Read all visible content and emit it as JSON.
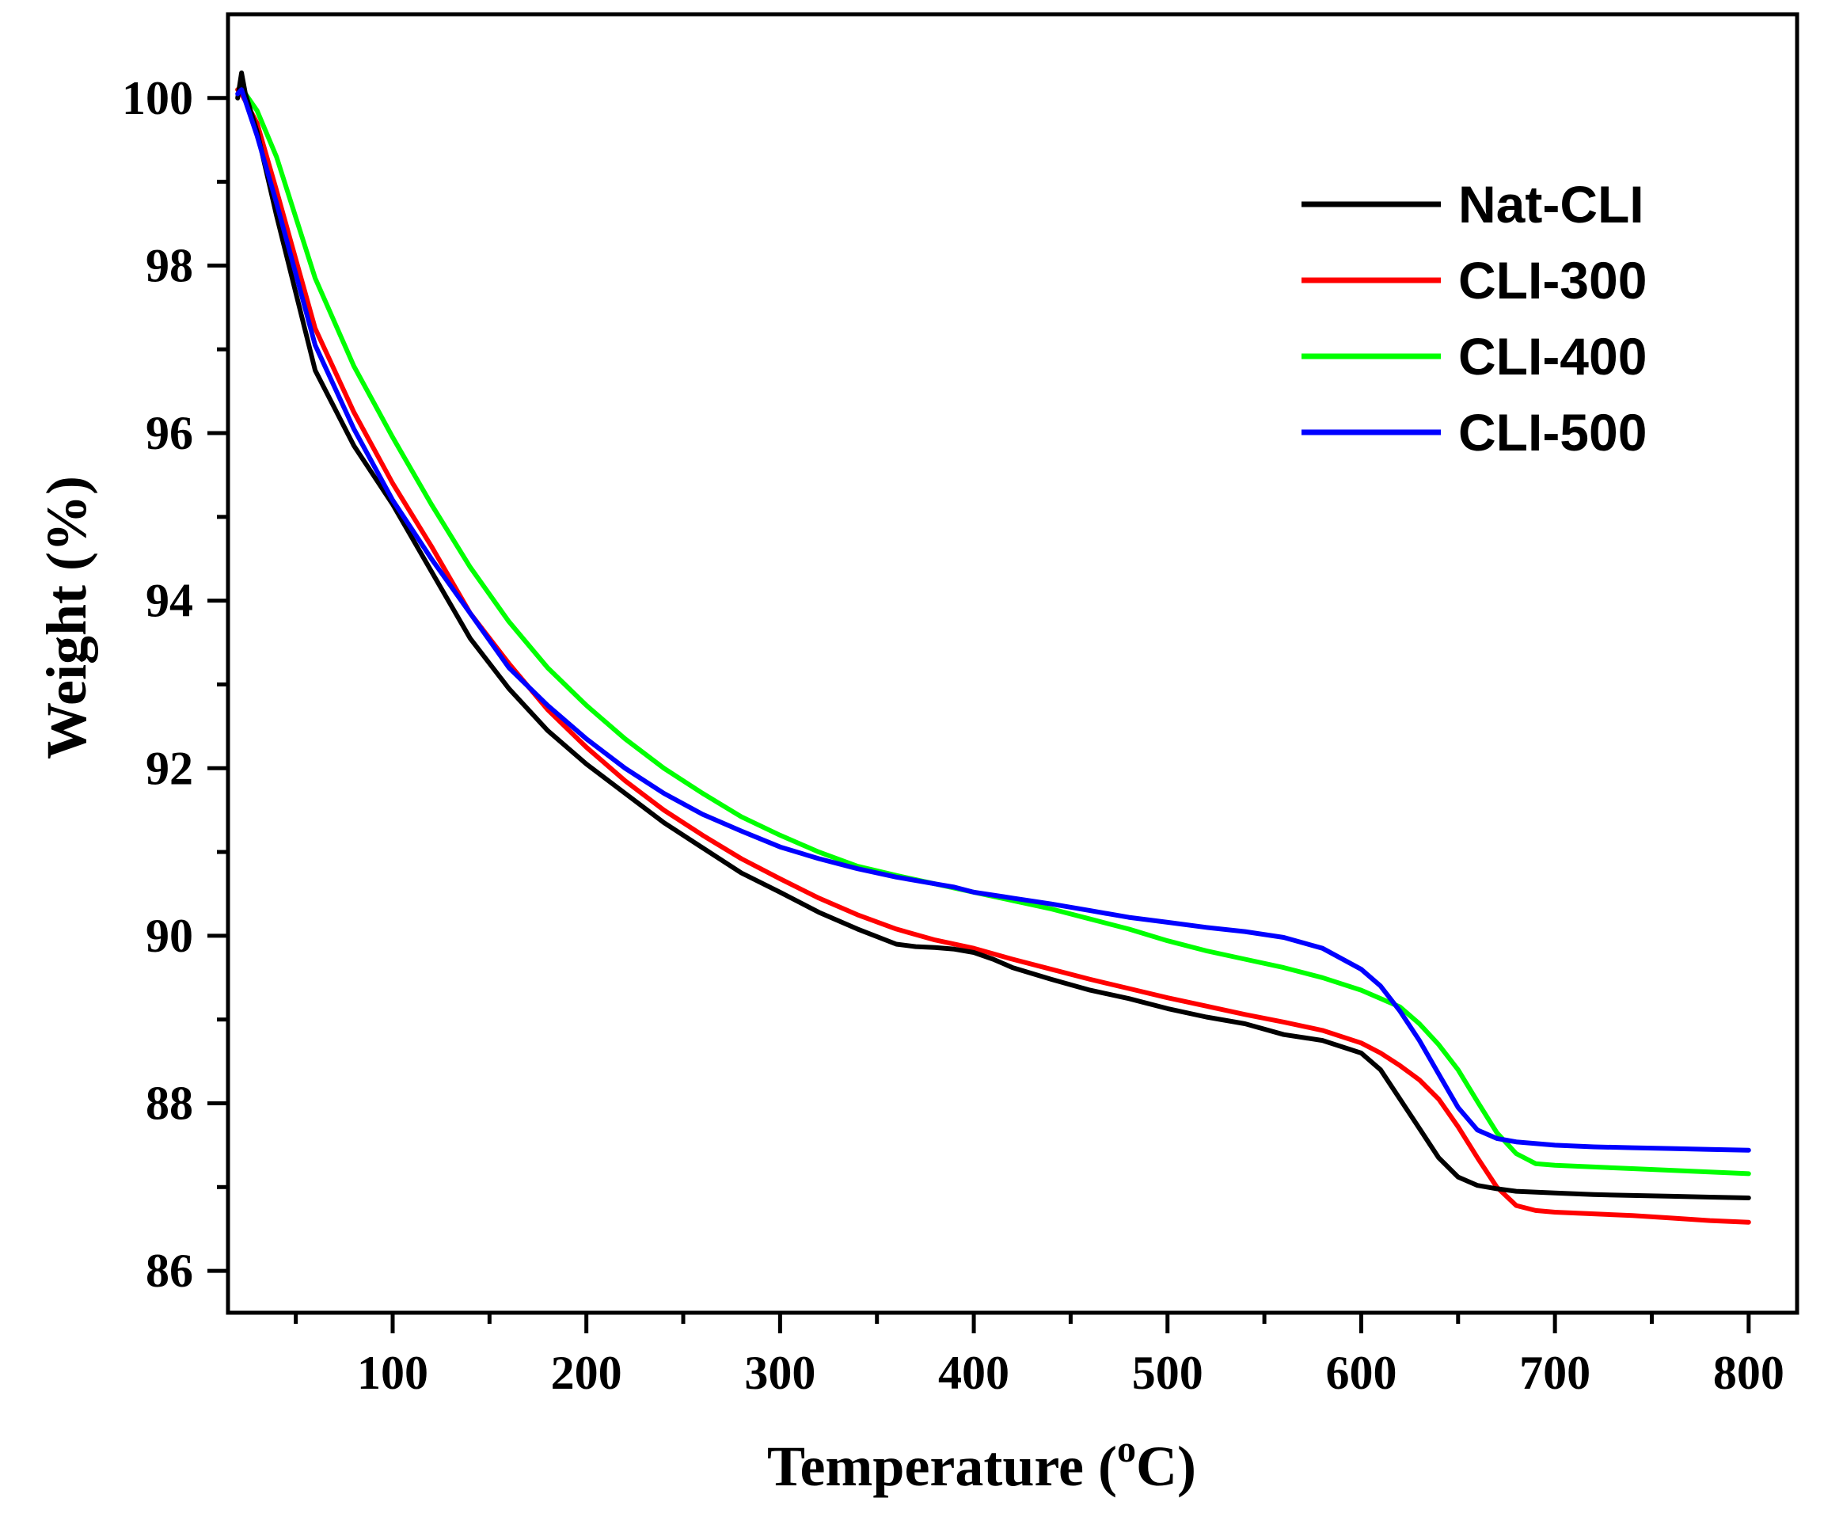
{
  "chart_data": {
    "type": "line",
    "title": "",
    "xlabel_main": "Temperature (",
    "xlabel_sup": "o",
    "xlabel_end": "C)",
    "ylabel": "Weight (%)",
    "xlim": [
      15,
      825
    ],
    "ylim": [
      85.5,
      101.0
    ],
    "x_major_ticks": [
      100,
      200,
      300,
      400,
      500,
      600,
      700,
      800
    ],
    "x_major_labels": [
      "100",
      "200",
      "300",
      "400",
      "500",
      "600",
      "700",
      "800"
    ],
    "x_minor_ticks": [
      50,
      150,
      250,
      350,
      450,
      550,
      650,
      750
    ],
    "y_major_ticks": [
      86,
      88,
      90,
      92,
      94,
      96,
      98,
      100
    ],
    "y_major_labels": [
      "86",
      "88",
      "90",
      "92",
      "94",
      "96",
      "98",
      "100"
    ],
    "y_minor_ticks": [
      87,
      89,
      91,
      93,
      95,
      97,
      99
    ],
    "legend_position": "top-right",
    "series": [
      {
        "name": "Nat-CLI",
        "color": "#000000",
        "x": [
          20,
          22,
          24,
          30,
          40,
          60,
          80,
          100,
          120,
          140,
          160,
          180,
          200,
          220,
          240,
          260,
          280,
          300,
          320,
          340,
          360,
          370,
          380,
          390,
          400,
          410,
          420,
          440,
          460,
          480,
          500,
          520,
          540,
          560,
          580,
          600,
          610,
          620,
          630,
          640,
          650,
          660,
          670,
          680,
          700,
          720,
          740,
          760,
          780,
          800
        ],
        "y": [
          100.0,
          100.3,
          100.05,
          99.6,
          98.6,
          96.75,
          95.85,
          95.15,
          94.35,
          93.55,
          92.95,
          92.45,
          92.05,
          91.7,
          91.35,
          91.05,
          90.75,
          90.52,
          90.28,
          90.08,
          89.9,
          89.87,
          89.86,
          89.84,
          89.8,
          89.72,
          89.62,
          89.48,
          89.35,
          89.25,
          89.13,
          89.03,
          88.95,
          88.82,
          88.75,
          88.6,
          88.4,
          88.05,
          87.7,
          87.35,
          87.12,
          87.02,
          86.98,
          86.95,
          86.93,
          86.91,
          86.9,
          86.89,
          86.88,
          86.87
        ]
      },
      {
        "name": "CLI-300",
        "color": "#ff0000",
        "x": [
          20,
          22,
          30,
          40,
          60,
          80,
          100,
          120,
          140,
          160,
          180,
          200,
          220,
          240,
          260,
          280,
          300,
          320,
          340,
          360,
          380,
          400,
          420,
          440,
          460,
          480,
          500,
          520,
          540,
          560,
          580,
          600,
          610,
          620,
          630,
          640,
          650,
          660,
          670,
          680,
          690,
          700,
          720,
          740,
          760,
          780,
          800
        ],
        "y": [
          100.1,
          100.05,
          99.7,
          98.9,
          97.25,
          96.25,
          95.4,
          94.65,
          93.85,
          93.25,
          92.7,
          92.25,
          91.85,
          91.5,
          91.2,
          90.92,
          90.68,
          90.45,
          90.25,
          90.08,
          89.95,
          89.85,
          89.72,
          89.6,
          89.48,
          89.37,
          89.26,
          89.16,
          89.06,
          88.97,
          88.87,
          88.72,
          88.6,
          88.45,
          88.28,
          88.05,
          87.72,
          87.35,
          87.0,
          86.78,
          86.72,
          86.7,
          86.68,
          86.66,
          86.63,
          86.6,
          86.58
        ]
      },
      {
        "name": "CLI-400",
        "color": "#00ff00",
        "x": [
          20,
          24,
          30,
          40,
          60,
          80,
          100,
          120,
          140,
          160,
          180,
          200,
          220,
          240,
          260,
          280,
          300,
          320,
          340,
          360,
          380,
          400,
          420,
          440,
          460,
          480,
          500,
          520,
          540,
          560,
          580,
          600,
          620,
          630,
          640,
          650,
          660,
          670,
          680,
          690,
          700,
          720,
          740,
          760,
          780,
          800
        ],
        "y": [
          100.1,
          100.05,
          99.85,
          99.3,
          97.85,
          96.8,
          95.95,
          95.15,
          94.4,
          93.75,
          93.2,
          92.75,
          92.35,
          92.0,
          91.7,
          91.42,
          91.2,
          91.0,
          90.83,
          90.72,
          90.62,
          90.52,
          90.42,
          90.32,
          90.2,
          90.08,
          89.94,
          89.82,
          89.72,
          89.62,
          89.5,
          89.35,
          89.15,
          88.95,
          88.7,
          88.4,
          88.02,
          87.65,
          87.4,
          87.28,
          87.26,
          87.24,
          87.22,
          87.2,
          87.18,
          87.16
        ]
      },
      {
        "name": "CLI-500",
        "color": "#0000ff",
        "x": [
          20,
          22,
          30,
          40,
          60,
          80,
          100,
          120,
          140,
          160,
          180,
          200,
          220,
          240,
          260,
          280,
          300,
          320,
          340,
          360,
          380,
          390,
          400,
          420,
          440,
          460,
          480,
          500,
          520,
          540,
          560,
          580,
          600,
          610,
          620,
          630,
          640,
          650,
          660,
          670,
          680,
          700,
          720,
          740,
          760,
          780,
          800
        ],
        "y": [
          100.05,
          100.1,
          99.55,
          98.75,
          97.05,
          96.05,
          95.2,
          94.5,
          93.85,
          93.2,
          92.75,
          92.35,
          92.0,
          91.7,
          91.45,
          91.25,
          91.06,
          90.92,
          90.8,
          90.7,
          90.62,
          90.58,
          90.52,
          90.45,
          90.38,
          90.3,
          90.22,
          90.16,
          90.1,
          90.05,
          89.98,
          89.85,
          89.6,
          89.4,
          89.1,
          88.75,
          88.35,
          87.95,
          87.68,
          87.58,
          87.54,
          87.5,
          87.48,
          87.47,
          87.46,
          87.45,
          87.44
        ]
      }
    ]
  }
}
